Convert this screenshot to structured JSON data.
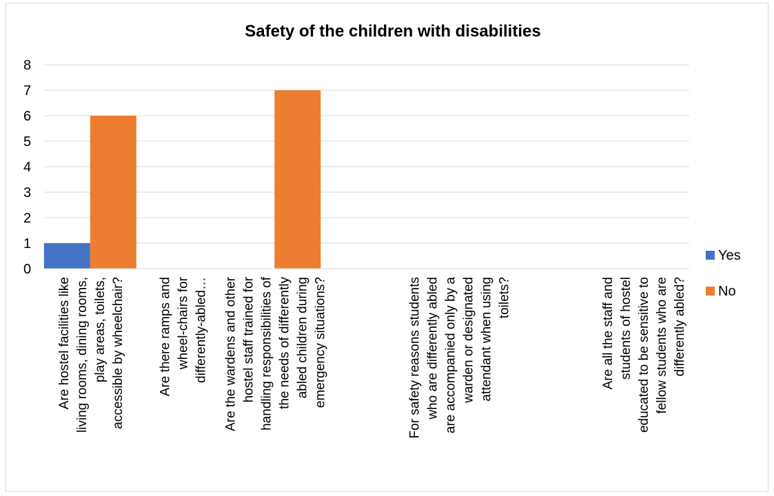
{
  "chart_data": {
    "type": "bar",
    "title": "Safety of the children with disabilities",
    "xlabel": "",
    "ylabel": "",
    "ylim": [
      0,
      8
    ],
    "yticks": [
      0,
      1,
      2,
      3,
      4,
      5,
      6,
      7,
      8
    ],
    "grid": true,
    "legend_position": "right",
    "categories": [
      [
        "Are hostel facilities like",
        "living rooms, dining rooms,",
        "play areas, toilets,",
        "accessible by wheelchair?"
      ],
      [
        "Are there ramps and",
        "wheel-chairs for",
        "differently-abled…"
      ],
      [
        "Are the wardens and other",
        "hostel staff trained for",
        "handling responsibilities of",
        "the needs of differently",
        "abled children during",
        "emergency situations?"
      ],
      [],
      [
        "For safety reasons students",
        "who are differently abled",
        "are accompanied only by a",
        "warden or designated",
        "attendant when using",
        "toilets?"
      ],
      [],
      [
        "Are all the staff and",
        "students of hostel",
        "educated to be sensitive to",
        "fellow students who are",
        "differently abled?"
      ]
    ],
    "series": [
      {
        "name": "Yes",
        "color": "#4472C4",
        "values": [
          1,
          0,
          0,
          0,
          0,
          0,
          0
        ]
      },
      {
        "name": "No",
        "color": "#ED7D31",
        "values": [
          6,
          0,
          7,
          0,
          0,
          0,
          0
        ]
      }
    ]
  }
}
